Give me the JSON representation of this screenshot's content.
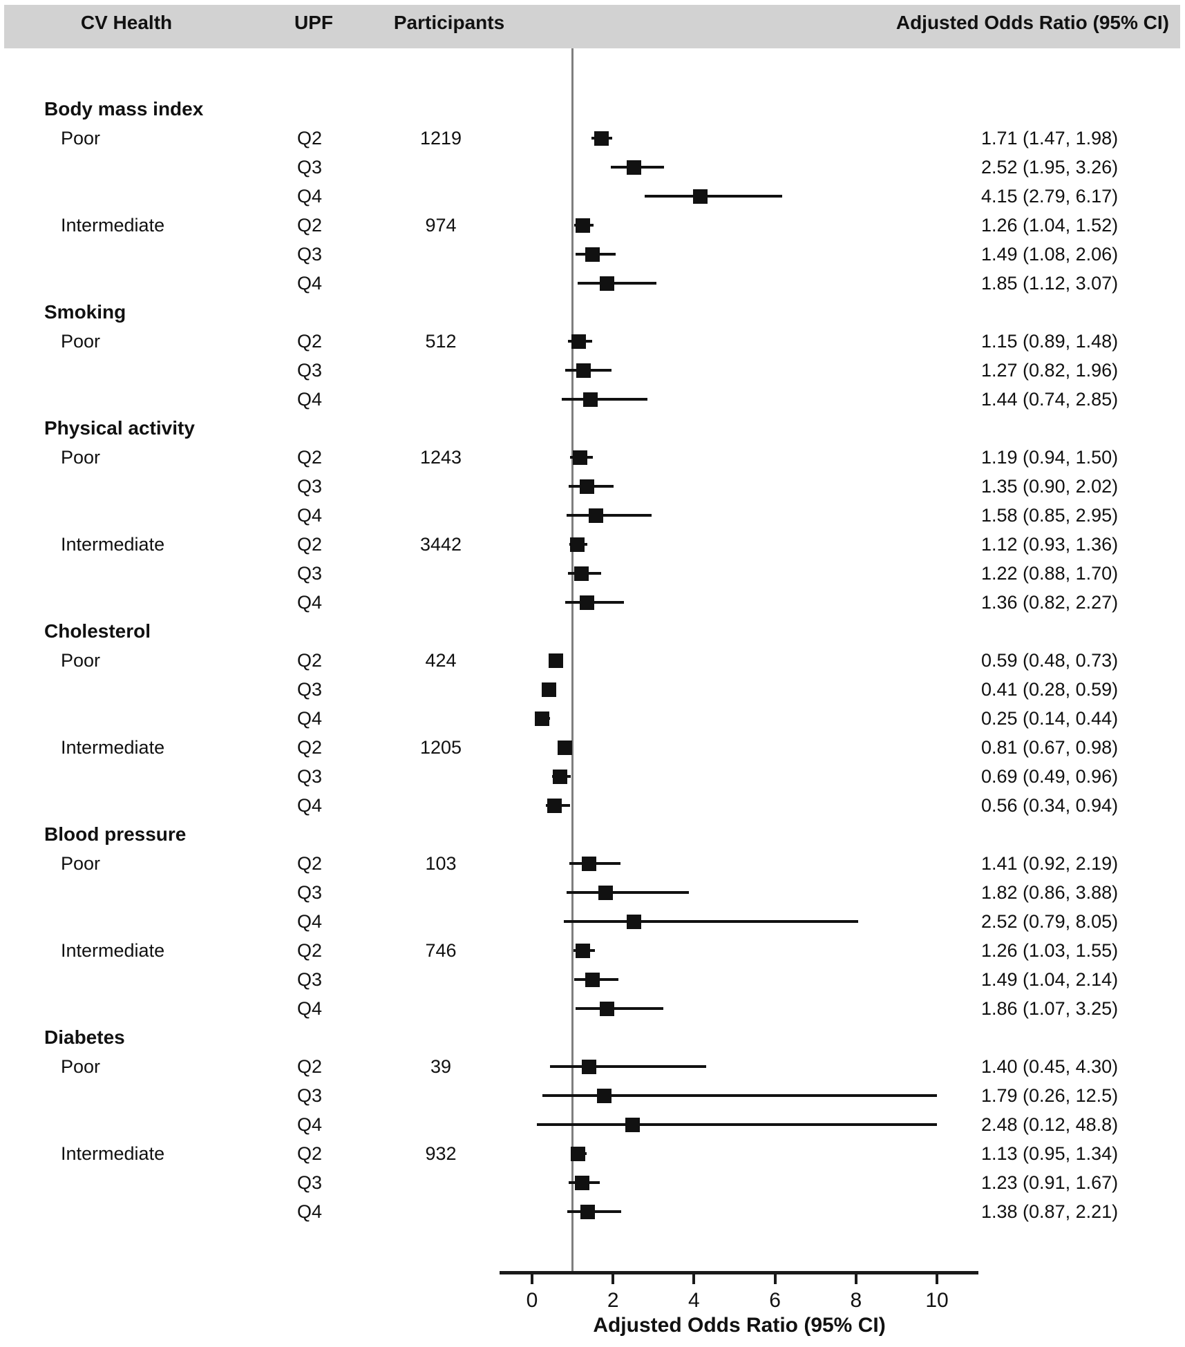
{
  "header": {
    "cv_health": "CV Health",
    "upf": "UPF",
    "participants": "Participants",
    "aor": "Adjusted Odds Ratio (95% CI)"
  },
  "x_axis": {
    "label": "Adjusted Odds Ratio (95% CI)",
    "ticks": [
      0,
      2,
      4,
      6,
      8,
      10
    ],
    "range": [
      0,
      10
    ],
    "reference_line_at": 1
  },
  "chart_data": {
    "type": "forest",
    "xlabel": "Adjusted Odds Ratio (95% CI)",
    "xlim": [
      0,
      10
    ],
    "reference_value": 1,
    "sections": [
      {
        "name": "Body mass index",
        "groups": [
          {
            "name": "Poor",
            "rows": [
              {
                "upf": "Q2",
                "participants": "1219",
                "or": 1.71,
                "lo": 1.47,
                "hi": 1.98,
                "ci_label": "1.71 (1.47, 1.98)"
              },
              {
                "upf": "Q3",
                "or": 2.52,
                "lo": 1.95,
                "hi": 3.26,
                "ci_label": "2.52 (1.95, 3.26)"
              },
              {
                "upf": "Q4",
                "or": 4.15,
                "lo": 2.79,
                "hi": 6.17,
                "ci_label": "4.15 (2.79, 6.17)"
              }
            ]
          },
          {
            "name": "Intermediate",
            "rows": [
              {
                "upf": "Q2",
                "participants": "974",
                "or": 1.26,
                "lo": 1.04,
                "hi": 1.52,
                "ci_label": "1.26 (1.04, 1.52)"
              },
              {
                "upf": "Q3",
                "or": 1.49,
                "lo": 1.08,
                "hi": 2.06,
                "ci_label": "1.49 (1.08, 2.06)"
              },
              {
                "upf": "Q4",
                "or": 1.85,
                "lo": 1.12,
                "hi": 3.07,
                "ci_label": "1.85 (1.12, 3.07)"
              }
            ]
          }
        ]
      },
      {
        "name": "Smoking",
        "groups": [
          {
            "name": "Poor",
            "rows": [
              {
                "upf": "Q2",
                "participants": "512",
                "or": 1.15,
                "lo": 0.89,
                "hi": 1.48,
                "ci_label": "1.15 (0.89, 1.48)"
              },
              {
                "upf": "Q3",
                "or": 1.27,
                "lo": 0.82,
                "hi": 1.96,
                "ci_label": "1.27 (0.82, 1.96)"
              },
              {
                "upf": "Q4",
                "or": 1.44,
                "lo": 0.74,
                "hi": 2.85,
                "ci_label": "1.44 (0.74, 2.85)"
              }
            ]
          }
        ]
      },
      {
        "name": "Physical activity",
        "groups": [
          {
            "name": "Poor",
            "rows": [
              {
                "upf": "Q2",
                "participants": "1243",
                "or": 1.19,
                "lo": 0.94,
                "hi": 1.5,
                "ci_label": "1.19 (0.94, 1.50)"
              },
              {
                "upf": "Q3",
                "or": 1.35,
                "lo": 0.9,
                "hi": 2.02,
                "ci_label": "1.35 (0.90, 2.02)"
              },
              {
                "upf": "Q4",
                "or": 1.58,
                "lo": 0.85,
                "hi": 2.95,
                "ci_label": "1.58 (0.85, 2.95)"
              }
            ]
          },
          {
            "name": "Intermediate",
            "rows": [
              {
                "upf": "Q2",
                "participants": "3442",
                "or": 1.12,
                "lo": 0.93,
                "hi": 1.36,
                "ci_label": "1.12 (0.93, 1.36)"
              },
              {
                "upf": "Q3",
                "or": 1.22,
                "lo": 0.88,
                "hi": 1.7,
                "ci_label": "1.22 (0.88, 1.70)"
              },
              {
                "upf": "Q4",
                "or": 1.36,
                "lo": 0.82,
                "hi": 2.27,
                "ci_label": "1.36 (0.82, 2.27)"
              }
            ]
          }
        ]
      },
      {
        "name": "Cholesterol",
        "groups": [
          {
            "name": "Poor",
            "rows": [
              {
                "upf": "Q2",
                "participants": "424",
                "or": 0.59,
                "lo": 0.48,
                "hi": 0.73,
                "ci_label": "0.59 (0.48, 0.73)"
              },
              {
                "upf": "Q3",
                "or": 0.41,
                "lo": 0.28,
                "hi": 0.59,
                "ci_label": "0.41 (0.28, 0.59)"
              },
              {
                "upf": "Q4",
                "or": 0.25,
                "lo": 0.14,
                "hi": 0.44,
                "ci_label": "0.25 (0.14, 0.44)"
              }
            ]
          },
          {
            "name": "Intermediate",
            "rows": [
              {
                "upf": "Q2",
                "participants": "1205",
                "or": 0.81,
                "lo": 0.67,
                "hi": 0.98,
                "ci_label": "0.81 (0.67, 0.98)"
              },
              {
                "upf": "Q3",
                "or": 0.69,
                "lo": 0.49,
                "hi": 0.96,
                "ci_label": "0.69 (0.49, 0.96)"
              },
              {
                "upf": "Q4",
                "or": 0.56,
                "lo": 0.34,
                "hi": 0.94,
                "ci_label": "0.56 (0.34, 0.94)"
              }
            ]
          }
        ]
      },
      {
        "name": "Blood pressure",
        "groups": [
          {
            "name": "Poor",
            "rows": [
              {
                "upf": "Q2",
                "participants": "103",
                "or": 1.41,
                "lo": 0.92,
                "hi": 2.19,
                "ci_label": "1.41 (0.92, 2.19)"
              },
              {
                "upf": "Q3",
                "or": 1.82,
                "lo": 0.86,
                "hi": 3.88,
                "ci_label": "1.82 (0.86, 3.88)"
              },
              {
                "upf": "Q4",
                "or": 2.52,
                "lo": 0.79,
                "hi": 8.05,
                "ci_label": "2.52 (0.79, 8.05)"
              }
            ]
          },
          {
            "name": "Intermediate",
            "rows": [
              {
                "upf": "Q2",
                "participants": "746",
                "or": 1.26,
                "lo": 1.03,
                "hi": 1.55,
                "ci_label": "1.26 (1.03, 1.55)"
              },
              {
                "upf": "Q3",
                "or": 1.49,
                "lo": 1.04,
                "hi": 2.14,
                "ci_label": "1.49 (1.04, 2.14)"
              },
              {
                "upf": "Q4",
                "or": 1.86,
                "lo": 1.07,
                "hi": 3.25,
                "ci_label": "1.86 (1.07, 3.25)"
              }
            ]
          }
        ]
      },
      {
        "name": "Diabetes",
        "groups": [
          {
            "name": "Poor",
            "rows": [
              {
                "upf": "Q2",
                "participants": "39",
                "or": 1.4,
                "lo": 0.45,
                "hi": 4.3,
                "ci_label": "1.40 (0.45, 4.30)"
              },
              {
                "upf": "Q3",
                "or": 1.79,
                "lo": 0.26,
                "hi": 12.5,
                "ci_label": "1.79 (0.26, 12.5)"
              },
              {
                "upf": "Q4",
                "or": 2.48,
                "lo": 0.12,
                "hi": 48.8,
                "ci_label": "2.48 (0.12, 48.8)"
              }
            ]
          },
          {
            "name": "Intermediate",
            "rows": [
              {
                "upf": "Q2",
                "participants": "932",
                "or": 1.13,
                "lo": 0.95,
                "hi": 1.34,
                "ci_label": "1.13 (0.95, 1.34)"
              },
              {
                "upf": "Q3",
                "or": 1.23,
                "lo": 0.91,
                "hi": 1.67,
                "ci_label": "1.23 (0.91, 1.67)"
              },
              {
                "upf": "Q4",
                "or": 1.38,
                "lo": 0.87,
                "hi": 2.21,
                "ci_label": "1.38 (0.87, 2.21)"
              }
            ]
          }
        ]
      }
    ]
  },
  "colors": {
    "header_band": "#d2d2d2",
    "reference_line": "#7f7f7f",
    "marker": "#111111",
    "axis": "#1a1a1a"
  }
}
